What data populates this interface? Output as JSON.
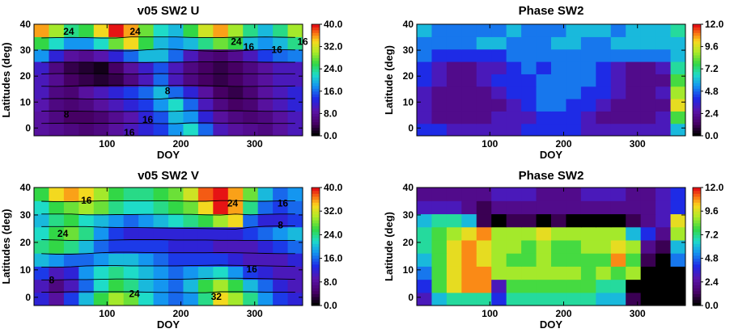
{
  "chart_data": [
    {
      "type": "heatmap",
      "title": "v05 SW2 U",
      "xlabel": "DOY",
      "ylabel": "Latitudes (deg)",
      "xlim": [
        1,
        365
      ],
      "ylim": [
        -3,
        40
      ],
      "x_ticks": [
        "100",
        "200",
        "300"
      ],
      "y_ticks": [
        "0",
        "10",
        "20",
        "30",
        "40"
      ],
      "colorbar": {
        "ticks": [
          "40.0",
          "32.0",
          "24.0",
          "16.0",
          "8.0",
          "0.0"
        ],
        "range": [
          0,
          40
        ]
      },
      "contours": true,
      "contour_labels": [
        {
          "text": "24",
          "x": 48,
          "y": 37
        },
        {
          "text": "24",
          "x": 138,
          "y": 37
        },
        {
          "text": "24",
          "x": 275,
          "y": 33
        },
        {
          "text": "16",
          "x": 292,
          "y": 31
        },
        {
          "text": "16",
          "x": 330,
          "y": 30
        },
        {
          "text": "16",
          "x": 365,
          "y": 33
        },
        {
          "text": "8",
          "x": 182,
          "y": 14
        },
        {
          "text": "8",
          "x": 45,
          "y": 5
        },
        {
          "text": "16",
          "x": 155,
          "y": 3
        },
        {
          "text": "16",
          "x": 130,
          "y": -2
        }
      ],
      "grid": [
        [
          8,
          7,
          6,
          5,
          6,
          8,
          10,
          12,
          14,
          18,
          22,
          16,
          10,
          8,
          7,
          6,
          8,
          10
        ],
        [
          8,
          6,
          4,
          4,
          5,
          7,
          9,
          12,
          15,
          20,
          18,
          12,
          8,
          6,
          5,
          6,
          8,
          10
        ],
        [
          9,
          6,
          5,
          6,
          8,
          10,
          12,
          14,
          18,
          22,
          16,
          10,
          6,
          4,
          5,
          8,
          10,
          12
        ],
        [
          10,
          6,
          5,
          8,
          10,
          12,
          14,
          16,
          20,
          16,
          12,
          8,
          4,
          3,
          5,
          8,
          10,
          12
        ],
        [
          10,
          7,
          4,
          3,
          2,
          3,
          6,
          10,
          16,
          10,
          6,
          4,
          3,
          4,
          6,
          8,
          10,
          10
        ],
        [
          11,
          6,
          3,
          2,
          1,
          4,
          8,
          11,
          15,
          10,
          6,
          4,
          3,
          4,
          6,
          8,
          10,
          10
        ],
        [
          18,
          12,
          8,
          7,
          9,
          12,
          16,
          20,
          20,
          16,
          10,
          6,
          5,
          7,
          10,
          14,
          16,
          17
        ],
        [
          26,
          22,
          18,
          18,
          22,
          28,
          34,
          26,
          20,
          18,
          20,
          24,
          28,
          26,
          20,
          18,
          20,
          24
        ],
        [
          36,
          30,
          24,
          26,
          34,
          40,
          36,
          28,
          22,
          20,
          26,
          32,
          36,
          30,
          24,
          20,
          24,
          30
        ]
      ]
    },
    {
      "type": "heatmap",
      "title": "Phase SW2",
      "xlabel": "DOY",
      "ylabel": "Latitude (deg)",
      "xlim": [
        1,
        365
      ],
      "ylim": [
        -3,
        40
      ],
      "x_ticks": [
        "100",
        "200",
        "300"
      ],
      "y_ticks": [
        "0",
        "10",
        "20",
        "30",
        "40"
      ],
      "colorbar": {
        "ticks": [
          "12.0",
          "9.6",
          "7.2",
          "4.8",
          "2.4",
          "0.0"
        ],
        "range": [
          0,
          12
        ]
      },
      "contours": false,
      "grid": [
        [
          4,
          4,
          3,
          3,
          3,
          3,
          3,
          4,
          4,
          4,
          4,
          3,
          3,
          3,
          3,
          3,
          3,
          6
        ],
        [
          3,
          2,
          2,
          2,
          2,
          3,
          3,
          3,
          4,
          4,
          4,
          3,
          2,
          2,
          2,
          2,
          3,
          8
        ],
        [
          3,
          2,
          2,
          2,
          2,
          2,
          3,
          4,
          5,
          5,
          4,
          4,
          3,
          2,
          2,
          2,
          2,
          10
        ],
        [
          3,
          2,
          2,
          2,
          2,
          3,
          4,
          4,
          5,
          5,
          5,
          4,
          4,
          3,
          2,
          2,
          3,
          9
        ],
        [
          4,
          3,
          2,
          2,
          3,
          4,
          4,
          4,
          5,
          5,
          5,
          5,
          4,
          3,
          2,
          2,
          2,
          8
        ],
        [
          4,
          3,
          2,
          2,
          3,
          3,
          4,
          5,
          4,
          5,
          5,
          5,
          4,
          3,
          2,
          2,
          3,
          7
        ],
        [
          5,
          4,
          4,
          4,
          4,
          4,
          5,
          5,
          5,
          5,
          5,
          5,
          5,
          5,
          5,
          5,
          5,
          6
        ],
        [
          5,
          5,
          5,
          5,
          6,
          6,
          5,
          5,
          5,
          6,
          6,
          5,
          5,
          6,
          6,
          6,
          6,
          6
        ],
        [
          6,
          5,
          5,
          5,
          5,
          5,
          6,
          5,
          5,
          5,
          6,
          6,
          6,
          5,
          6,
          6,
          6,
          7
        ]
      ]
    },
    {
      "type": "heatmap",
      "title": "v05 SW2 V",
      "xlabel": "DOY",
      "ylabel": "Latitudes (deg)",
      "xlim": [
        1,
        365
      ],
      "ylim": [
        -3,
        40
      ],
      "x_ticks": [
        "100",
        "200",
        "300"
      ],
      "y_ticks": [
        "0",
        "10",
        "20",
        "30",
        "40"
      ],
      "colorbar": {
        "ticks": [
          "40.0",
          "32.0",
          "24.0",
          "16.0",
          "8.0",
          "0.0"
        ],
        "range": [
          0,
          40
        ]
      },
      "contours": true,
      "contour_labels": [
        {
          "text": "16",
          "x": 72,
          "y": 35
        },
        {
          "text": "24",
          "x": 40,
          "y": 23
        },
        {
          "text": "24",
          "x": 270,
          "y": 34
        },
        {
          "text": "16",
          "x": 338,
          "y": 34
        },
        {
          "text": "8",
          "x": 335,
          "y": 26
        },
        {
          "text": "16",
          "x": 296,
          "y": 10
        },
        {
          "text": "24",
          "x": 137,
          "y": 1
        },
        {
          "text": "32",
          "x": 248,
          "y": 0
        },
        {
          "text": "8",
          "x": 25,
          "y": 6
        }
      ],
      "grid": [
        [
          12,
          8,
          14,
          20,
          26,
          30,
          28,
          22,
          18,
          16,
          18,
          24,
          34,
          30,
          24,
          18,
          14,
          12
        ],
        [
          10,
          6,
          10,
          16,
          22,
          26,
          24,
          20,
          18,
          16,
          20,
          26,
          30,
          26,
          20,
          16,
          12,
          10
        ],
        [
          14,
          10,
          12,
          18,
          22,
          24,
          22,
          20,
          18,
          16,
          18,
          20,
          22,
          18,
          14,
          12,
          10,
          10
        ],
        [
          20,
          18,
          16,
          16,
          18,
          20,
          20,
          18,
          16,
          14,
          14,
          14,
          14,
          12,
          10,
          10,
          10,
          12
        ],
        [
          24,
          26,
          24,
          20,
          16,
          14,
          14,
          14,
          14,
          12,
          12,
          12,
          10,
          10,
          10,
          12,
          14,
          16
        ],
        [
          22,
          26,
          28,
          24,
          18,
          14,
          12,
          12,
          12,
          12,
          12,
          12,
          12,
          12,
          14,
          16,
          18,
          20
        ],
        [
          20,
          24,
          26,
          22,
          20,
          18,
          16,
          18,
          20,
          22,
          24,
          26,
          30,
          34,
          16,
          12,
          12,
          14
        ],
        [
          22,
          26,
          28,
          30,
          28,
          24,
          22,
          22,
          24,
          26,
          28,
          34,
          40,
          36,
          24,
          16,
          14,
          16
        ],
        [
          26,
          34,
          36,
          34,
          30,
          26,
          24,
          24,
          26,
          28,
          32,
          38,
          40,
          36,
          28,
          20,
          16,
          18
        ]
      ]
    },
    {
      "type": "heatmap",
      "title": "Phase SW2",
      "xlabel": "DOY",
      "ylabel": "Latitude (deg)",
      "xlim": [
        1,
        365
      ],
      "ylim": [
        -3,
        40
      ],
      "x_ticks": [
        "100",
        "200",
        "300"
      ],
      "y_ticks": [
        "0",
        "10",
        "20",
        "30",
        "40"
      ],
      "colorbar": {
        "ticks": [
          "12.0",
          "9.6",
          "7.2",
          "4.8",
          "2.4",
          "0.0"
        ],
        "range": [
          0,
          12
        ]
      },
      "contours": false,
      "grid": [
        [
          3,
          6,
          7,
          7,
          7,
          4,
          7,
          7,
          7,
          7,
          7,
          7,
          6,
          6,
          1,
          0,
          0,
          0
        ],
        [
          4,
          8,
          10,
          11,
          11,
          3,
          8,
          8,
          8,
          8,
          8,
          8,
          7,
          7,
          0,
          0,
          0,
          0
        ],
        [
          5,
          8,
          10,
          11,
          11,
          9,
          9,
          9,
          9,
          9,
          9,
          8,
          9,
          8,
          9,
          0,
          0,
          0
        ],
        [
          6,
          8,
          10,
          11,
          10,
          9,
          8,
          8,
          9,
          8,
          8,
          8,
          8,
          11,
          8,
          1,
          0,
          5
        ],
        [
          7,
          8,
          10,
          11,
          10,
          9,
          9,
          8,
          9,
          8,
          8,
          9,
          9,
          10,
          9,
          2,
          1,
          6
        ],
        [
          7,
          8,
          9,
          10,
          11,
          9,
          9,
          9,
          10,
          9,
          9,
          9,
          9,
          9,
          6,
          4,
          2,
          9
        ],
        [
          6,
          7,
          7,
          6,
          1,
          0,
          1,
          1,
          0,
          1,
          0,
          0,
          0,
          0,
          1,
          2,
          3,
          10
        ],
        [
          3,
          3,
          3,
          2,
          1,
          2,
          2,
          2,
          2,
          2,
          2,
          2,
          2,
          2,
          2,
          2,
          3,
          4
        ],
        [
          2,
          2,
          2,
          2,
          2,
          3,
          3,
          3,
          2,
          2,
          2,
          3,
          3,
          3,
          2,
          2,
          3,
          4
        ]
      ]
    }
  ]
}
